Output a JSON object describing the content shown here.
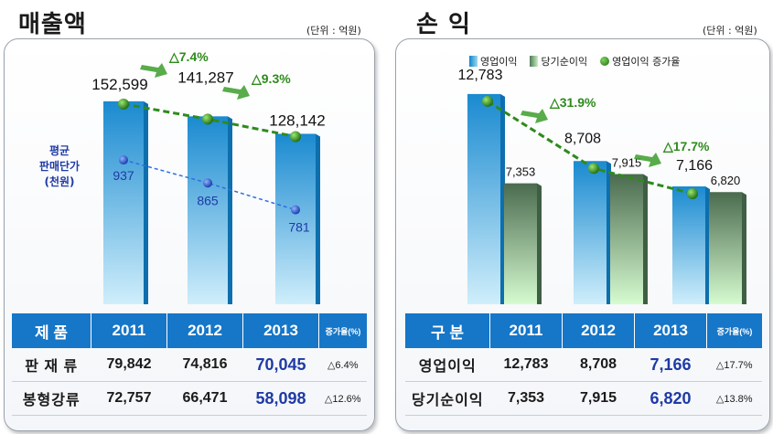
{
  "left": {
    "title": "매출액",
    "unit": "(단위 : 억원)",
    "avg_label": [
      "평균",
      "판매단가",
      "(천원)"
    ],
    "table": {
      "headers": [
        "제 품",
        "2011",
        "2012",
        "2013",
        "증가율(%)"
      ],
      "rows": [
        [
          "판 재 류",
          "79,842",
          "74,816",
          "70,045",
          "△6.4%"
        ],
        [
          "봉형강류",
          "72,757",
          "66,471",
          "58,098",
          "△12.6%"
        ]
      ]
    }
  },
  "right": {
    "title": "손  익",
    "unit": "(단위 : 억원)",
    "legend": [
      "영업이익",
      "당기순이익",
      "영업이익 증가율"
    ],
    "table": {
      "headers": [
        "구 분",
        "2011",
        "2012",
        "2013",
        "증가율(%)"
      ],
      "rows": [
        [
          "영업이익",
          "12,783",
          "8,708",
          "7,166",
          "△17.7%"
        ],
        [
          "당기순이익",
          "7,353",
          "7,915",
          "6,820",
          "△13.8%"
        ]
      ]
    }
  },
  "chart_data": [
    {
      "type": "bar",
      "title": "매출액",
      "categories": [
        "2011",
        "2012",
        "2013"
      ],
      "series": [
        {
          "name": "",
          "values": [
            152599,
            141287,
            128142
          ],
          "labels": [
            "152,599",
            "141,287",
            "128,142"
          ]
        }
      ],
      "secondary_line": {
        "name": "평균 판매단가 (천원)",
        "values": [
          937,
          865,
          781
        ],
        "labels": [
          "937",
          "865",
          "781"
        ]
      },
      "annotations": [
        "△7.4%",
        "△9.3%"
      ],
      "colors": {
        "bar": "#1c8fd0",
        "trend": "#2e8b1c",
        "avg": "#2f6fe0"
      }
    },
    {
      "type": "bar",
      "title": "손  익",
      "categories": [
        "2011",
        "2012",
        "2013"
      ],
      "series": [
        {
          "name": "영업이익",
          "values": [
            12783,
            8708,
            7166
          ],
          "labels": [
            "12,783",
            "8,708",
            "7,166"
          ]
        },
        {
          "name": "당기순이익",
          "values": [
            7353,
            7915,
            6820
          ],
          "labels": [
            "7,353",
            "7,915",
            "6,820"
          ]
        }
      ],
      "trend_line": {
        "name": "영업이익 증가율",
        "of_series": "영업이익"
      },
      "annotations": [
        "△31.9%",
        "△17.7%"
      ],
      "colors": {
        "bar1": "#1c8fd0",
        "bar2": "#5c8a5e",
        "trend": "#2e8b1c"
      }
    }
  ]
}
